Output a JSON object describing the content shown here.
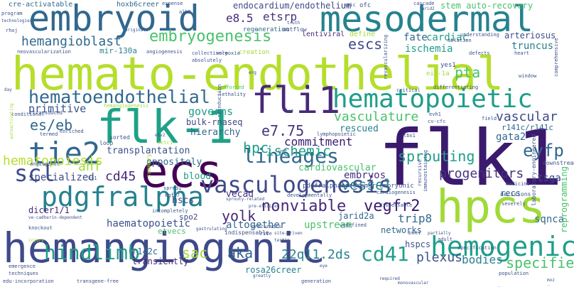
{
  "words": [
    {
      "text": "hemato-endothelial",
      "color": "#b5de2b"
    },
    {
      "text": "hemangiogenic",
      "color": "#3e4a89"
    },
    {
      "text": "flk1",
      "color": "#3b1a6e"
    },
    {
      "text": "embryoid",
      "color": "#31688e"
    },
    {
      "text": "mesodermal",
      "color": "#26828e"
    },
    {
      "text": "flk-1",
      "color": "#1fa187"
    },
    {
      "text": "ecs",
      "color": "#440154"
    },
    {
      "text": "fli1",
      "color": "#482878"
    },
    {
      "text": "hpcs",
      "color": "#a0da39"
    },
    {
      "text": "pdgfralpha",
      "color": "#26828e"
    },
    {
      "text": "hematopoietic",
      "color": "#1f9e89"
    },
    {
      "text": "vasculogenesis",
      "color": "#3e4a89"
    },
    {
      "text": "hemogenic",
      "color": "#1f9e89"
    },
    {
      "text": "hematoendothelial",
      "color": "#31688e"
    },
    {
      "text": "embryogenesis",
      "color": "#4ac16d"
    },
    {
      "text": "tie2",
      "color": "#31688e"
    },
    {
      "text": "scl",
      "color": "#3e4a89"
    },
    {
      "text": "lineages",
      "color": "#31688e"
    },
    {
      "text": "hindlimb",
      "color": "#1f9e89"
    },
    {
      "text": "cd41",
      "color": "#1f9e89"
    },
    {
      "text": "hemangioblast",
      "color": "#31688e"
    },
    {
      "text": "endocardium/endothelium",
      "color": "#404788"
    },
    {
      "text": "etsrp",
      "color": "#46337e"
    },
    {
      "text": "e8.5",
      "color": "#482878"
    },
    {
      "text": "stem auto-recovery",
      "color": "#4ac16d"
    },
    {
      "text": "regeneration",
      "color": "#31688e"
    },
    {
      "text": "escs",
      "color": "#3e4a89"
    },
    {
      "text": "fate",
      "color": "#31688e"
    },
    {
      "text": "cardiac",
      "color": "#1f9e89"
    },
    {
      "text": "arteriosus",
      "color": "#3e4a89"
    },
    {
      "text": "truncus",
      "color": "#26828e"
    },
    {
      "text": "ischemia",
      "color": "#1f9e89"
    },
    {
      "text": "lentiviral",
      "color": "#482878"
    },
    {
      "text": "define",
      "color": "#a0da39"
    },
    {
      "text": "mir-130a",
      "color": "#26828e"
    },
    {
      "text": "pta",
      "color": "#4ac16d"
    },
    {
      "text": "primitive",
      "color": "#3b528b"
    },
    {
      "text": "governs",
      "color": "#1f9e89"
    },
    {
      "text": "es/eb",
      "color": "#31688e"
    },
    {
      "text": "vasculature",
      "color": "#4ac16d"
    },
    {
      "text": "vascular",
      "color": "#3e4a89"
    },
    {
      "text": "bulk-rnaseq",
      "color": "#404788"
    },
    {
      "text": "hierarchy",
      "color": "#31688e"
    },
    {
      "text": "e7.75",
      "color": "#46337e"
    },
    {
      "text": "hpc",
      "color": "#1f9e89"
    },
    {
      "text": "rescued",
      "color": "#26828e"
    },
    {
      "text": "gata2",
      "color": "#31688e"
    },
    {
      "text": "commitment",
      "color": "#3b1a6e"
    },
    {
      "text": "eyfp",
      "color": "#31688e"
    },
    {
      "text": "transplantation",
      "color": "#3b528b"
    },
    {
      "text": "ischemic",
      "color": "#1f9e89"
    },
    {
      "text": "sprouting",
      "color": "#1f9e89"
    },
    {
      "text": "ahf",
      "color": "#a0da39"
    },
    {
      "text": "specialized",
      "color": "#3e4a89"
    },
    {
      "text": "cd45",
      "color": "#482878"
    },
    {
      "text": "hematopoiesis",
      "color": "#b5de2b"
    },
    {
      "text": "progenitors",
      "color": "#46337e"
    },
    {
      "text": "tsga",
      "color": "#3e4a89"
    },
    {
      "text": "cardiovascular",
      "color": "#4ac16d"
    },
    {
      "text": "embryos",
      "color": "#46337e"
    },
    {
      "text": "nonviable",
      "color": "#482878"
    },
    {
      "text": "vessel",
      "color": "#26828e"
    },
    {
      "text": "vegfr2",
      "color": "#3b1a6e"
    },
    {
      "text": "yolk",
      "color": "#482878"
    },
    {
      "text": "trip8",
      "color": "#31688e"
    },
    {
      "text": "altogether",
      "color": "#31688e"
    },
    {
      "text": "haematopoietic",
      "color": "#3b528b"
    },
    {
      "text": "upstream",
      "color": "#4ac16d"
    },
    {
      "text": "sqnca",
      "color": "#31688e"
    },
    {
      "text": "sac",
      "color": "#a0da39"
    },
    {
      "text": "aka",
      "color": "#31688e"
    },
    {
      "text": "22q11.2ds",
      "color": "#26828e"
    },
    {
      "text": "plexus",
      "color": "#3b528b"
    },
    {
      "text": "bodies",
      "color": "#26828e"
    },
    {
      "text": "specifies",
      "color": "#4ac16d"
    },
    {
      "text": "hscs",
      "color": "#3e4a89"
    },
    {
      "text": "dicer1/1",
      "color": "#482878"
    },
    {
      "text": "jarid2a",
      "color": "#31688e"
    },
    {
      "text": "networks",
      "color": "#31688e"
    },
    {
      "text": "rosa26creer",
      "color": "#26828e"
    },
    {
      "text": "r142c",
      "color": "#31688e"
    },
    {
      "text": "transiently",
      "color": "#482878"
    },
    {
      "text": "etvecs",
      "color": "#4ac16d"
    },
    {
      "text": "vecad",
      "color": "#46337e"
    },
    {
      "text": "oppositely",
      "color": "#31688e"
    },
    {
      "text": "blood",
      "color": "#1f9e89"
    },
    {
      "text": "spo2",
      "color": "#3e4a89"
    },
    {
      "text": "recs",
      "color": "#31688e"
    },
    {
      "text": "r141c/r141c",
      "color": "#31688e"
    },
    {
      "text": "reprogramming",
      "color": "#4ac16d"
    },
    {
      "text": "hoxb6creer",
      "color": "#31688e"
    },
    {
      "text": "cre-activatable",
      "color": "#31688e"
    },
    {
      "text": "conditional",
      "color": "#3b528b"
    },
    {
      "text": "outflow",
      "color": "#3b528b"
    },
    {
      "text": "neovascularization",
      "color": "#3b528b"
    },
    {
      "text": "collectively",
      "color": "#3b528b"
    },
    {
      "text": "normoxia",
      "color": "#3b528b"
    },
    {
      "text": "creation",
      "color": "#a0da39"
    },
    {
      "text": "absolutely",
      "color": "#3b528b"
    },
    {
      "text": "angiogenesis",
      "color": "#3b528b"
    },
    {
      "text": "enforced",
      "color": "#4ac16d"
    },
    {
      "text": "lethality",
      "color": "#3b528b"
    },
    {
      "text": "reinduction",
      "color": "#3b528b"
    },
    {
      "text": "differentiating",
      "color": "#3b528b"
    },
    {
      "text": "critical",
      "color": "#3b528b"
    },
    {
      "text": "window",
      "color": "#3b528b"
    },
    {
      "text": "eif-1a",
      "color": "#a0da39"
    },
    {
      "text": "yes1",
      "color": "#3b528b"
    },
    {
      "text": "hemangiogenesis",
      "color": "#a0da39"
    },
    {
      "text": "transduced",
      "color": "#3b528b"
    },
    {
      "text": "termed",
      "color": "#3b528b"
    },
    {
      "text": "enriched",
      "color": "#3b528b"
    },
    {
      "text": "loop",
      "color": "#3b528b"
    },
    {
      "text": "sorted",
      "color": "#3b528b"
    },
    {
      "text": "angiogenic",
      "color": "#3b528b"
    },
    {
      "text": "ks1",
      "color": "#3b528b"
    },
    {
      "text": "summary",
      "color": "#a0da39"
    },
    {
      "text": "incompletely",
      "color": "#3b528b"
    },
    {
      "text": "spred1",
      "color": "#3b528b"
    },
    {
      "text": "egfl7",
      "color": "#3b528b"
    },
    {
      "text": "pdgfralphamercremer",
      "color": "#3b528b"
    },
    {
      "text": "lymphopoietic",
      "color": "#3b528b"
    },
    {
      "text": "developmentally",
      "color": "#3b528b"
    },
    {
      "text": "indispensable",
      "color": "#3b528b"
    },
    {
      "text": "undefined",
      "color": "#3b528b"
    },
    {
      "text": "cardiogenesis",
      "color": "#3b528b"
    },
    {
      "text": "embryonic",
      "color": "#3b528b"
    },
    {
      "text": "recursive",
      "color": "#3b528b"
    },
    {
      "text": "immunostaining",
      "color": "#3b528b"
    },
    {
      "text": "dispensable",
      "color": "#3b528b"
    },
    {
      "text": "medicine",
      "color": "#3b528b"
    },
    {
      "text": "decisions",
      "color": "#3b528b"
    },
    {
      "text": "severely",
      "color": "#3b528b"
    },
    {
      "text": "laboratory-engineered",
      "color": "#3b528b"
    },
    {
      "text": "downstream",
      "color": "#3b528b"
    },
    {
      "text": "comprehensive",
      "color": "#3b528b"
    },
    {
      "text": "ve-cadherin-dependent",
      "color": "#3b528b"
    },
    {
      "text": "knockout",
      "color": "#3b528b"
    },
    {
      "text": "emergence",
      "color": "#3b528b"
    },
    {
      "text": "techniques",
      "color": "#3b528b"
    },
    {
      "text": "edu-incorporation",
      "color": "#3b528b"
    },
    {
      "text": "transgene-free",
      "color": "#3b528b"
    },
    {
      "text": "generation",
      "color": "#3b528b"
    },
    {
      "text": "gastrulating",
      "color": "#3b528b"
    },
    {
      "text": "precursors",
      "color": "#3b528b"
    },
    {
      "text": "monovascular",
      "color": "#3b528b"
    },
    {
      "text": "hspcs",
      "color": "#3b528b"
    },
    {
      "text": "adult",
      "color": "#3b528b"
    },
    {
      "text": "population",
      "color": "#3b528b"
    },
    {
      "text": "specification",
      "color": "#3b528b"
    },
    {
      "text": "autoactivating",
      "color": "#a0da39"
    },
    {
      "text": "program",
      "color": "#3b528b"
    },
    {
      "text": "technologies",
      "color": "#3b528b"
    },
    {
      "text": "expense",
      "color": "#3b528b"
    },
    {
      "text": "alk8",
      "color": "#3b528b"
    },
    {
      "text": "originate",
      "color": "#3b528b"
    },
    {
      "text": "rhoj",
      "color": "#3b528b"
    },
    {
      "text": "ablation",
      "color": "#3b528b"
    },
    {
      "text": "defects",
      "color": "#3b528b"
    },
    {
      "text": "heart",
      "color": "#3b528b"
    },
    {
      "text": "cascade",
      "color": "#3b528b"
    },
    {
      "text": "understanding",
      "color": "#3b528b"
    },
    {
      "text": "revascularizing",
      "color": "#3b528b"
    },
    {
      "text": "jarid2",
      "color": "#3b528b"
    },
    {
      "text": "cv-cfc",
      "color": "#3b528b"
    },
    {
      "text": "evh1",
      "color": "#3b528b"
    },
    {
      "text": "field",
      "color": "#3b528b"
    },
    {
      "text": "tbx1",
      "color": "#3b528b"
    },
    {
      "text": "wnt",
      "color": "#3b528b"
    },
    {
      "text": "actc1",
      "color": "#a0da39"
    },
    {
      "text": "erg",
      "color": "#3b528b"
    },
    {
      "text": "day",
      "color": "#3b528b"
    },
    {
      "text": "etv2",
      "color": "#3b528b"
    },
    {
      "text": "led",
      "color": "#3b528b"
    },
    {
      "text": "rise",
      "color": "#3b528b"
    },
    {
      "text": "site-driven",
      "color": "#3b528b"
    },
    {
      "text": "testis",
      "color": "#3b528b"
    },
    {
      "text": "greatly",
      "color": "#3b528b"
    },
    {
      "text": "required",
      "color": "#3b528b"
    },
    {
      "text": "sprouty-related",
      "color": "#3b528b"
    },
    {
      "text": "pre-elicited",
      "color": "#3b528b"
    },
    {
      "text": "partially",
      "color": "#3b528b"
    },
    {
      "text": "dnmt1",
      "color": "#3b528b"
    },
    {
      "text": "moz",
      "color": "#3b528b"
    },
    {
      "text": "truth",
      "color": "#3b528b"
    },
    {
      "text": "spic",
      "color": "#3b528b"
    },
    {
      "text": "ofc",
      "color": "#3b528b"
    },
    {
      "text": "injury",
      "color": "#a0da39"
    },
    {
      "text": "eye",
      "color": "#3b528b"
    },
    {
      "text": "jumbled",
      "color": "#3b528b"
    },
    {
      "text": "intended",
      "color": "#3b528b"
    }
  ]
}
